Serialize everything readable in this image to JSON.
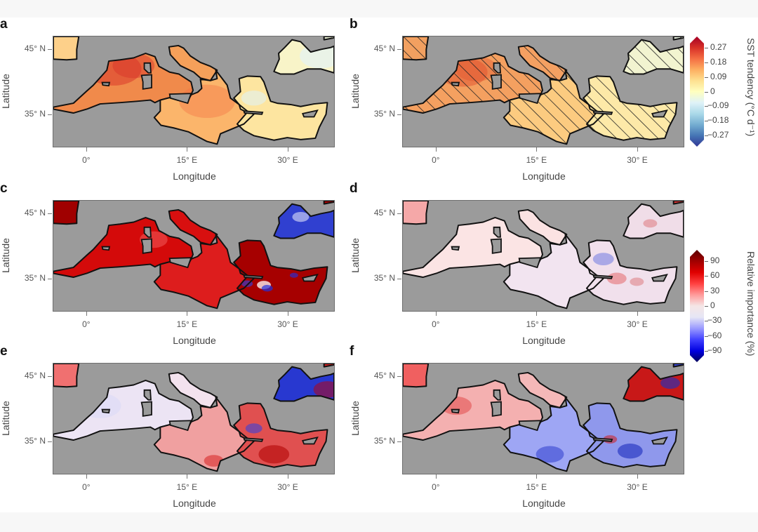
{
  "figure": {
    "background": "#ffffff",
    "panels": [
      {
        "id": "a",
        "letter": "a",
        "scale": "sst",
        "hatched": false,
        "pattern": "sst_mean"
      },
      {
        "id": "b",
        "letter": "b",
        "scale": "sst",
        "hatched": true,
        "pattern": "sst_hatched"
      },
      {
        "id": "c",
        "letter": "c",
        "scale": "importance",
        "hatched": false,
        "pattern": "imp_strong_red"
      },
      {
        "id": "d",
        "letter": "d",
        "scale": "importance",
        "hatched": false,
        "pattern": "imp_weak"
      },
      {
        "id": "e",
        "letter": "e",
        "scale": "importance",
        "hatched": false,
        "pattern": "imp_east_red"
      },
      {
        "id": "f",
        "letter": "f",
        "scale": "importance",
        "hatched": false,
        "pattern": "imp_central_blue"
      }
    ],
    "axes": {
      "ylabel": "Latitude",
      "xlabel": "Longitude",
      "yticks": [
        "45° N",
        "35° N"
      ],
      "xticks": [
        "0°",
        "15° E",
        "30° E"
      ]
    },
    "colorbars": {
      "sst": {
        "title": "SST tendency (°C d⁻¹)",
        "ticks": [
          "0.27",
          "0.18",
          "0.09",
          "0",
          "−0.09",
          "−0.18",
          "−0.27"
        ],
        "colors": [
          "#a50026",
          "#d73027",
          "#f46d43",
          "#fdae61",
          "#fee090",
          "#ffffbf",
          "#e0f3f8",
          "#abd9e9",
          "#74add1",
          "#4575b4",
          "#313695"
        ]
      },
      "importance": {
        "title": "Relative importance (%)",
        "ticks": [
          "90",
          "60",
          "30",
          "0",
          "−30",
          "−60",
          "−90"
        ],
        "colors": [
          "#5a0000",
          "#a00000",
          "#e00000",
          "#ff4040",
          "#ff9a9a",
          "#f5e6e6",
          "#e6e6f5",
          "#9a9aff",
          "#4040ff",
          "#0000e0",
          "#00005a"
        ]
      }
    },
    "land_color": "#9b9b9b"
  },
  "chart_data": [
    {
      "type": "heatmap",
      "panel": "a",
      "title": "",
      "xlabel": "Longitude",
      "ylabel": "Latitude",
      "xticks": [
        "0°",
        "15° E",
        "30° E"
      ],
      "yticks": [
        "45° N",
        "35° N"
      ],
      "xlim": [
        -5,
        37
      ],
      "ylim": [
        30,
        47
      ],
      "colorbar": {
        "label": "SST tendency (°C d⁻¹)",
        "range": [
          -0.27,
          0.27
        ],
        "ticks": [
          -0.27,
          -0.18,
          -0.09,
          0,
          0.09,
          0.18,
          0.27
        ]
      },
      "description": "Positive SST tendency across Mediterranean; strongest (~0.18–0.27) in the Gulf of Lion / Ligurian area, moderate (~0.09–0.18) in central basin, weak (~0–0.09) in the eastern basin, near-zero/slightly negative in Aegean and eastern Black Sea"
    },
    {
      "type": "heatmap",
      "panel": "b",
      "xlabel": "Longitude",
      "ylabel": "Latitude",
      "xticks": [
        "0°",
        "15° E",
        "30° E"
      ],
      "yticks": [
        "45° N",
        "35° N"
      ],
      "xlim": [
        -5,
        37
      ],
      "ylim": [
        30,
        47
      ],
      "colorbar": {
        "label": "SST tendency (°C d⁻¹)",
        "range": [
          -0.27,
          0.27
        ]
      },
      "description": "Similar pattern to a but smoother; diagonal hatching over western basin, Adriatic, Ionian/Aegean and parts of the Black Sea"
    },
    {
      "type": "heatmap",
      "panel": "c",
      "xlabel": "Longitude",
      "ylabel": "Latitude",
      "xticks": [
        "0°",
        "15° E",
        "30° E"
      ],
      "yticks": [
        "45° N",
        "35° N"
      ],
      "colorbar": {
        "label": "Relative importance (%)",
        "range": [
          -90,
          90
        ],
        "ticks": [
          -90,
          -60,
          -30,
          0,
          30,
          60,
          90
        ]
      },
      "description": "Strongly positive (60–90%) almost everywhere; negative (blue) patches in western Black Sea and a streak south of Crete"
    },
    {
      "type": "heatmap",
      "panel": "d",
      "xlabel": "Longitude",
      "ylabel": "Latitude",
      "colorbar": {
        "label": "Relative importance (%)",
        "range": [
          -90,
          90
        ]
      },
      "description": "Near zero (−10 to 10%) over most of the basin; scattered positive and negative hotspots in the Aegean, Levantine and Black Sea"
    },
    {
      "type": "heatmap",
      "panel": "e",
      "xlabel": "Longitude",
      "ylabel": "Latitude",
      "colorbar": {
        "label": "Relative importance (%)",
        "range": [
          -90,
          90
        ]
      },
      "description": "Slightly negative in western basin, moderately positive (30–60%) in central and eastern basin, strongly negative in western Black Sea, mixed in Aegean"
    },
    {
      "type": "heatmap",
      "panel": "f",
      "xlabel": "Longitude",
      "ylabel": "Latitude",
      "colorbar": {
        "label": "Relative importance (%)",
        "range": [
          -90,
          90
        ]
      },
      "description": "Positive (30–60%) in western basin and Adriatic, negative (−30 to −60%) across central basin/Ionian and Levantine, strongly positive western Black Sea, mixed eastern Black Sea"
    }
  ]
}
